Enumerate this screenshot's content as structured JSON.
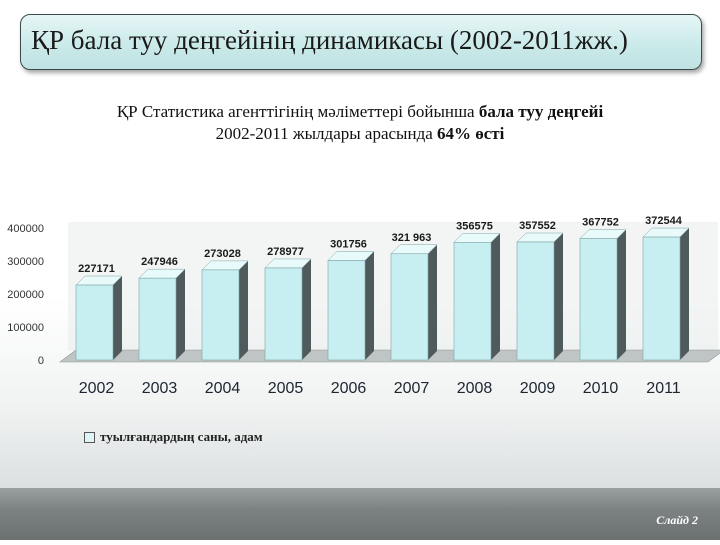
{
  "slide": {
    "title": "ҚР бала туу деңгейінің динамикасы (2002-2011жж.)",
    "subtitle_part1": "ҚР Статистика агенттігінің мәліметтері бойынша ",
    "subtitle_bold1": "бала туу деңгейі",
    "subtitle_part2": "2002-2011 жылдары арасында ",
    "subtitle_bold2": "64%",
    "subtitle_part3": " өсті",
    "slide_number": "Слайд 2"
  },
  "colors": {
    "bar_front": "#c7eef0",
    "bar_side": "#4f5a5c",
    "bar_top": "#e8fafa",
    "floor": "#bfc4c4",
    "wall": "#e9ecec"
  },
  "chart_data": {
    "type": "bar",
    "title": "",
    "xlabel": "",
    "ylabel": "",
    "categories": [
      "2002",
      "2003",
      "2004",
      "2005",
      "2006",
      "2007",
      "2008",
      "2009",
      "2010",
      "2011"
    ],
    "series": [
      {
        "name": "туылғандардың саны, адам",
        "values": [
          227171,
          247946,
          273028,
          278977,
          301756,
          321963,
          356575,
          357552,
          367752,
          372544
        ],
        "labels": [
          "227171",
          "247946",
          "273028",
          "278977",
          "301756",
          "321 963",
          "356575",
          "357552",
          "367752",
          "372544"
        ]
      }
    ],
    "yticks": [
      "0",
      "100000",
      "200000",
      "300000",
      "400000"
    ],
    "ylim": [
      0,
      400000
    ],
    "legend": "bottom-left",
    "grid": false
  }
}
